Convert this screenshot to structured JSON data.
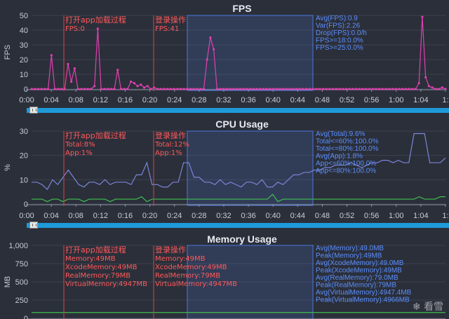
{
  "colors": {
    "fps_line": "#e040b0",
    "cpu_total": "#7a86d8",
    "cpu_app": "#3fbf4f",
    "mem_line": "#3fbf4f",
    "marker": "#e04040",
    "selection": "#4a78e0"
  },
  "watermark": "看雪",
  "chart_data": [
    {
      "type": "line",
      "title": "FPS",
      "ylabel": "FPS",
      "ylim": [
        0,
        50
      ],
      "yticks": [
        "0",
        "10",
        "20",
        "30",
        "40",
        "50"
      ],
      "xticks": [
        "0:00",
        "0:04",
        "0:08",
        "0:12",
        "0:16",
        "0:20",
        "0:24",
        "0:28",
        "0:32",
        "0:36",
        "0:40",
        "0:44",
        "0:48",
        "0:52",
        "0:56",
        "1:00",
        "1:04",
        "1:"
      ],
      "series": [
        {
          "values": [
            0,
            0,
            0,
            0,
            0,
            0,
            23,
            0,
            0,
            0,
            0,
            17,
            5,
            14,
            0,
            0,
            0,
            0,
            0,
            2,
            41,
            0,
            0,
            0,
            0,
            0,
            13,
            0,
            0,
            0,
            5,
            4,
            2,
            3,
            1,
            2,
            0,
            1,
            0,
            0,
            0,
            0,
            0,
            0,
            0,
            0,
            0,
            0,
            0,
            0,
            0,
            0,
            0,
            20,
            35,
            27,
            0,
            0,
            0,
            0,
            0,
            0,
            0,
            0,
            0,
            0,
            0,
            0,
            0,
            0,
            0,
            0,
            0,
            0,
            0,
            0,
            0,
            0,
            0,
            0,
            0,
            0,
            0,
            0,
            0,
            0,
            0,
            0,
            0,
            0,
            0,
            0,
            0,
            0,
            0,
            0,
            0,
            0,
            0,
            0,
            0,
            0,
            0,
            0,
            0,
            0,
            0,
            0,
            0,
            0,
            0,
            0,
            0,
            0,
            0,
            0,
            0,
            4,
            49,
            8,
            2,
            1,
            0,
            0,
            1,
            0
          ]
        }
      ],
      "annotations": [
        {
          "lines": [
            "打开app加载过程",
            "FPS:0"
          ]
        },
        {
          "lines": [
            "登录操作",
            "FPS:41"
          ]
        }
      ],
      "stats": [
        "Avg(FPS):0.9",
        "Var(FPS):2.26",
        "Drop(FPS):0.0/h",
        "FPS>=18:0.0%",
        "FPS>=25:0.0%"
      ]
    },
    {
      "type": "line",
      "title": "CPU Usage",
      "ylabel": "%",
      "ylim": [
        0,
        30
      ],
      "yticks": [
        "0",
        "10",
        "20",
        "30"
      ],
      "xticks": [
        "0:00",
        "0:04",
        "0:08",
        "0:12",
        "0:16",
        "0:20",
        "0:24",
        "0:28",
        "0:32",
        "0:36",
        "0:40",
        "0:44",
        "0:48",
        "0:52",
        "0:56",
        "1:00",
        "1:04",
        "1:"
      ],
      "series": [
        {
          "values": [
            9,
            9,
            8,
            6,
            10,
            8,
            11,
            14,
            11,
            8,
            7,
            9,
            9,
            8,
            10,
            8,
            9,
            9,
            9,
            8,
            12,
            12,
            17,
            8,
            8,
            7,
            7,
            9,
            9,
            17,
            17,
            11,
            11,
            9,
            9,
            8,
            10,
            8,
            9,
            8,
            7,
            9,
            9,
            8,
            10,
            7,
            7,
            9,
            8,
            10,
            12,
            12,
            13,
            13,
            14,
            14,
            15,
            15,
            16,
            16,
            16,
            17,
            16,
            15,
            16,
            17,
            17,
            18,
            18,
            17,
            18,
            17,
            17,
            29,
            29,
            29,
            17,
            17,
            17,
            19
          ]
        },
        {
          "values": [
            2,
            2,
            2,
            1,
            2,
            2,
            1,
            2,
            2,
            2,
            1,
            2,
            2,
            2,
            2,
            1,
            2,
            2,
            2,
            2,
            2,
            3,
            1,
            2,
            2,
            2,
            2,
            2,
            2,
            2,
            2,
            2,
            2,
            2,
            2,
            2,
            2,
            2,
            2,
            2,
            2,
            2,
            2,
            2,
            2,
            2,
            4,
            1,
            2,
            2,
            2,
            2,
            2,
            2,
            2,
            2,
            2,
            2,
            2,
            2,
            2,
            2,
            2,
            2,
            2,
            2,
            2,
            2,
            2,
            2,
            2,
            2,
            2,
            2,
            3,
            2,
            2,
            2,
            3,
            3
          ]
        }
      ],
      "annotations": [
        {
          "lines": [
            "打开app加载过程",
            "Total:8%",
            "App:1%"
          ]
        },
        {
          "lines": [
            "登录操作",
            "Total:12%",
            "App:1%"
          ]
        }
      ],
      "stats": [
        "Avg(Total):9.6%",
        "Total<=60%:100.0%",
        "Total<=80%:100.0%",
        "Avg(App):1.8%",
        "App<=60%:100.0%",
        "App<=80%:100.0%"
      ]
    },
    {
      "type": "line",
      "title": "Memory Usage",
      "ylabel": "MB",
      "ylim": [
        0,
        1000
      ],
      "yticks": [
        "0",
        "250",
        "500",
        "750",
        "1,000"
      ],
      "xticks": [],
      "series": [
        {
          "values": [
            79,
            79,
            79,
            79,
            79,
            79,
            79,
            79,
            79,
            79,
            79,
            79,
            79,
            79,
            79,
            79,
            79,
            79,
            79,
            79
          ]
        }
      ],
      "annotations": [
        {
          "lines": [
            "打开app加载过程",
            "Memory:49MB",
            "XcodeMemory:49MB",
            "RealMemory:79MB",
            "VirtualMemory:4947MB"
          ]
        },
        {
          "lines": [
            "登录操作",
            "Memory:49MB",
            "XcodeMemory:49MB",
            "RealMemory:79MB",
            "VirtualMemory:4947MB"
          ]
        }
      ],
      "stats": [
        "Avg(Memory):49.0MB",
        "Peak(Memory):49MB",
        "Avg(XcodeMemory):49.0MB",
        "Peak(XcodeMemory):49MB",
        "Avg(RealMemory):79.0MB",
        "Peak(RealMemory):79MB",
        "Avg(VirtualMemory):4947.4MB",
        "Peak(VirtualMemory):4966MB"
      ]
    }
  ]
}
